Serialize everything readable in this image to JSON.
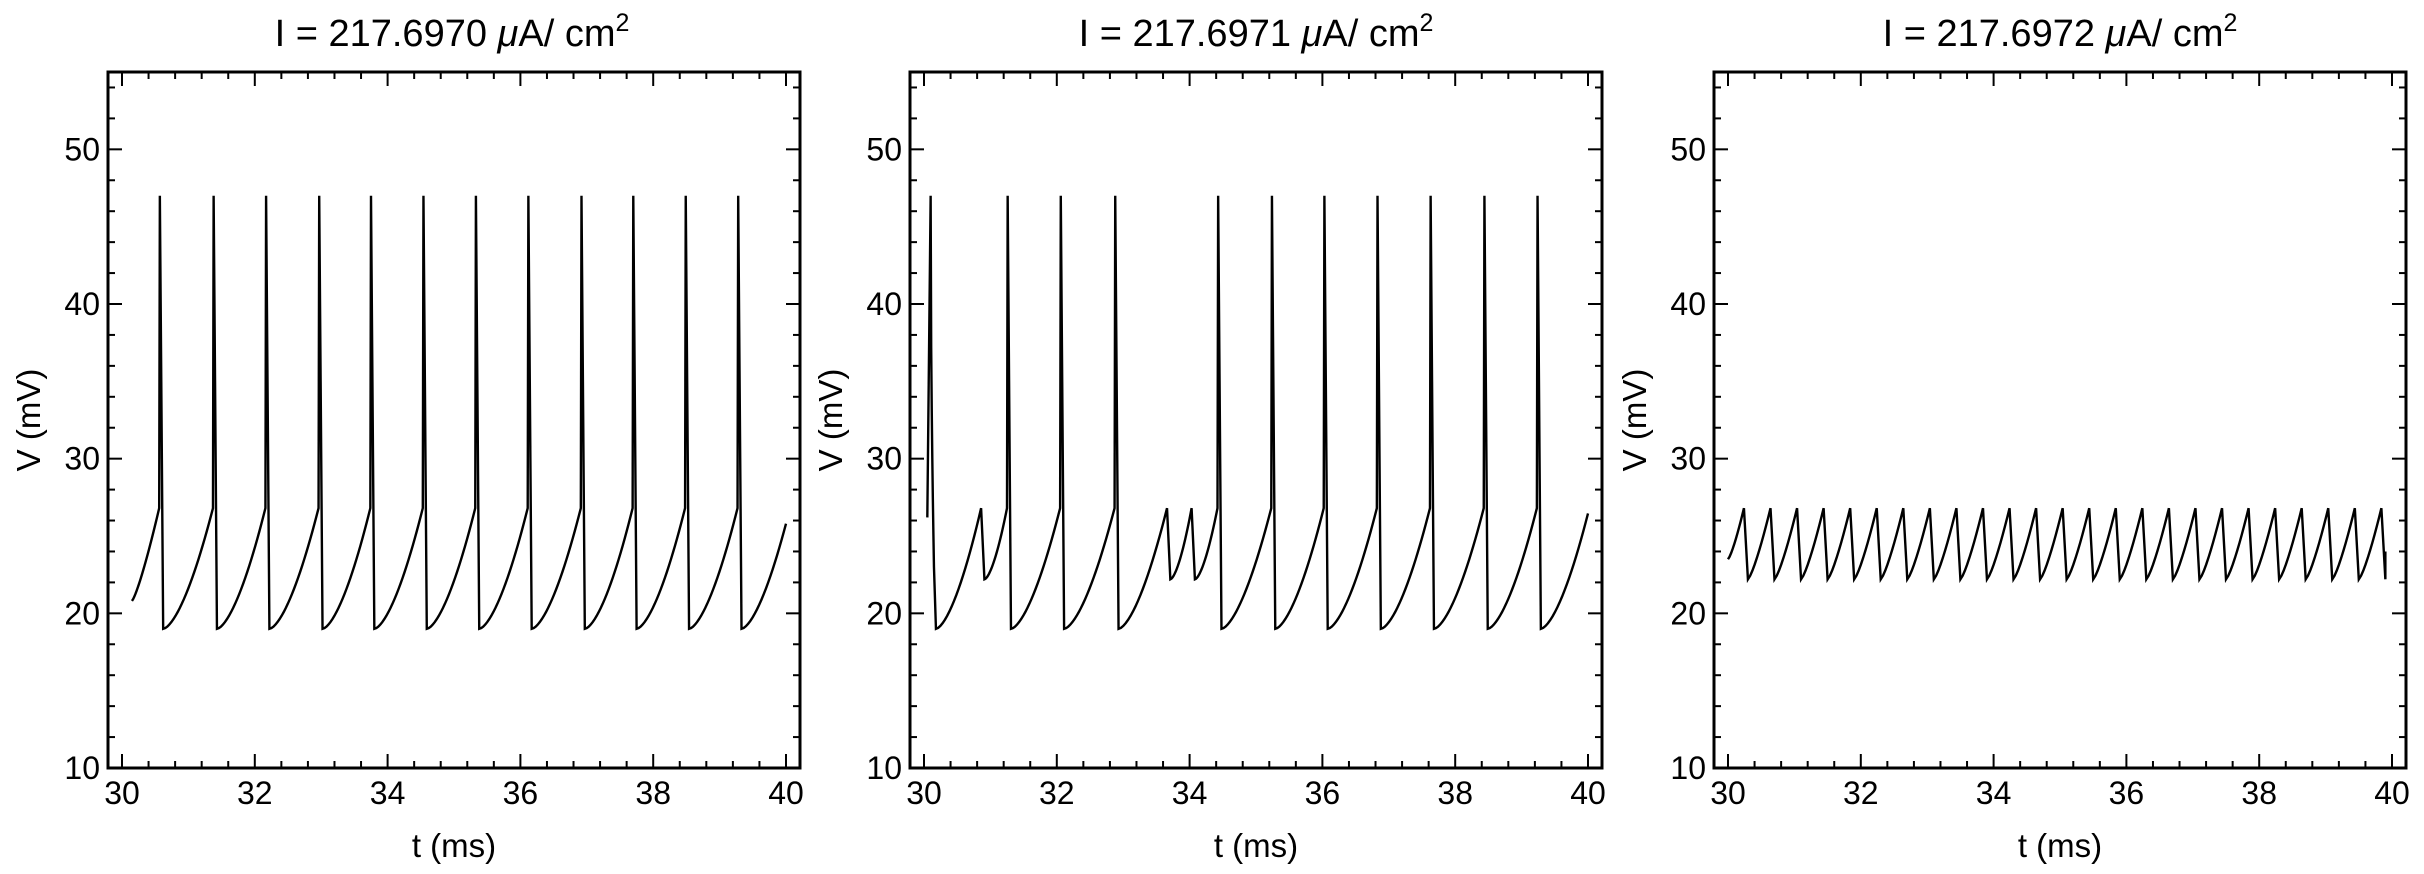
{
  "chart_data": [
    {
      "type": "line",
      "title_prefix": "I = 217.6970 ",
      "title_unit_mu": "μ",
      "title_unit_rest": "A/ cm",
      "title_exponent": "2",
      "xlabel": "t (ms)",
      "ylabel": "V (mV)",
      "xlim": [
        30,
        40
      ],
      "ylim": [
        10,
        55
      ],
      "xticks": [
        "30",
        "32",
        "34",
        "36",
        "38",
        "40"
      ],
      "yticks": [
        "10",
        "20",
        "30",
        "40",
        "50"
      ],
      "grid": false,
      "series": [
        {
          "color": "#000000",
          "trace": {
            "start": 30.15,
            "end": 40.0,
            "v_reset": 19.0,
            "v_peak": 47.0,
            "v_threshold": 26.8,
            "v_start": 20.8,
            "spike_times": [
              30.57,
              31.38,
              32.17,
              32.97,
              33.75,
              34.54,
              35.33,
              36.12,
              36.92,
              37.7,
              38.49,
              39.28
            ]
          }
        }
      ]
    },
    {
      "type": "line",
      "title_prefix": "I = 217.6971 ",
      "title_unit_mu": "μ",
      "title_unit_rest": "A/ cm",
      "title_exponent": "2",
      "xlabel": "t (ms)",
      "ylabel": "V (mV)",
      "xlim": [
        30,
        40
      ],
      "ylim": [
        10,
        55
      ],
      "xticks": [
        "30",
        "32",
        "34",
        "36",
        "38",
        "40"
      ],
      "yticks": [
        "10",
        "20",
        "30",
        "40",
        "50"
      ],
      "grid": false,
      "series": [
        {
          "color": "#000000",
          "trace": {
            "start": 30.05,
            "end": 40.0,
            "v_reset": 19.0,
            "v_peak": 47.0,
            "v_threshold": 26.8,
            "v_small_reset": 22.2,
            "v_start": 26.2,
            "first_peak": 30.1,
            "events": [
              {
                "t": 30.15,
                "kind": "spike"
              },
              {
                "t": 30.87,
                "kind": "small"
              },
              {
                "t": 31.26,
                "kind": "spike"
              },
              {
                "t": 32.06,
                "kind": "spike"
              },
              {
                "t": 32.88,
                "kind": "spike"
              },
              {
                "t": 33.67,
                "kind": "small"
              },
              {
                "t": 34.04,
                "kind": "small"
              },
              {
                "t": 34.43,
                "kind": "spike"
              },
              {
                "t": 35.24,
                "kind": "spike"
              },
              {
                "t": 36.03,
                "kind": "spike"
              },
              {
                "t": 36.83,
                "kind": "spike"
              },
              {
                "t": 37.63,
                "kind": "spike"
              },
              {
                "t": 38.44,
                "kind": "spike"
              },
              {
                "t": 39.24,
                "kind": "spike"
              }
            ]
          }
        }
      ]
    },
    {
      "type": "line",
      "title_prefix": "I = 217.6972 ",
      "title_unit_mu": "μ",
      "title_unit_rest": "A/ cm",
      "title_exponent": "2",
      "xlabel": "t (ms)",
      "ylabel": "V (mV)",
      "xlim": [
        30,
        40
      ],
      "ylim": [
        10,
        55
      ],
      "xticks": [
        "30",
        "32",
        "34",
        "36",
        "38",
        "40"
      ],
      "yticks": [
        "10",
        "20",
        "30",
        "40",
        "50"
      ],
      "grid": false,
      "series": [
        {
          "color": "#000000",
          "trace": {
            "start": 30.0,
            "end": 39.9,
            "v_small_reset": 22.2,
            "v_threshold": 26.8,
            "v_start": 23.5,
            "v_end": 24.0,
            "first_reset": 30.25,
            "period": 0.4
          }
        }
      ]
    }
  ]
}
